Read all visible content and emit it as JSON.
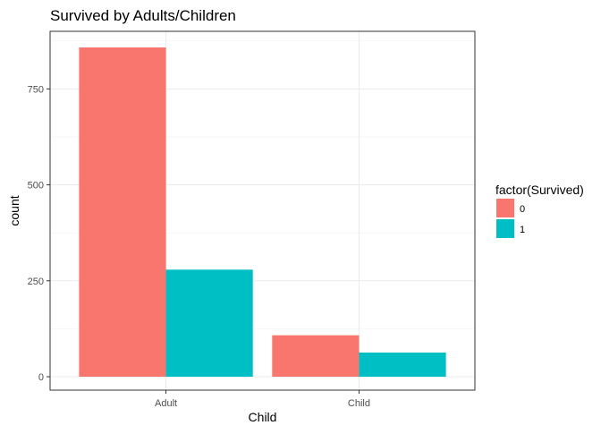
{
  "chart_data": {
    "type": "bar",
    "title": "Survived by Adults/Children",
    "xlabel": "Child",
    "ylabel": "count",
    "categories": [
      "Adult",
      "Child"
    ],
    "series": [
      {
        "name": "0",
        "color": "#F8766D",
        "values": [
          858,
          108
        ]
      },
      {
        "name": "1",
        "color": "#00BFC4",
        "values": [
          279,
          63
        ]
      }
    ],
    "ylim": [
      -35,
      900
    ],
    "yticks": [
      0,
      250,
      500,
      750
    ],
    "ytick_labels": [
      "0",
      "250",
      "500",
      "750"
    ],
    "grid": true,
    "legend": {
      "title": "factor(Survived)",
      "placement": "right"
    }
  }
}
